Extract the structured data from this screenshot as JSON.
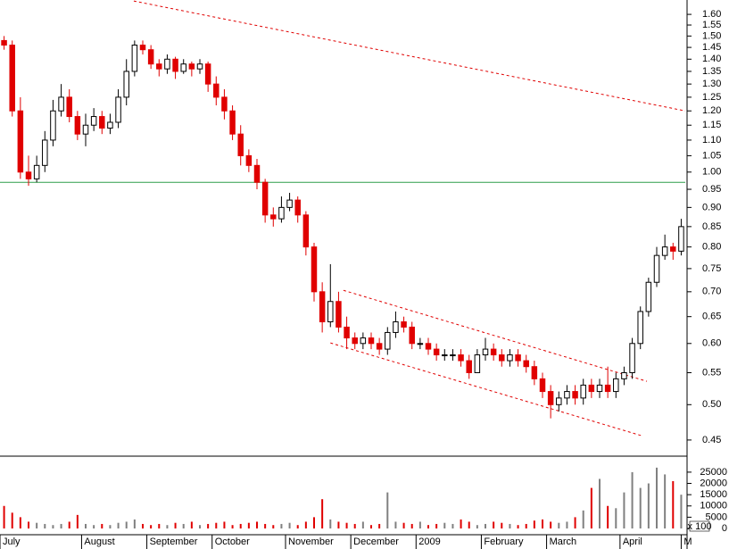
{
  "chart_data": [
    {
      "type": "candlestick",
      "log_scale": true,
      "xlim": [
        0,
        84
      ],
      "ylim": [
        0.43,
        1.67
      ],
      "yticks": [
        0.45,
        {
          "value": 0.5,
          "label": "0.50"
        },
        0.55,
        {
          "value": 0.6,
          "label": "0.60"
        },
        0.65,
        {
          "value": 0.7,
          "label": "0.70"
        },
        0.75,
        {
          "value": 0.8,
          "label": "0.80"
        },
        0.85,
        {
          "value": 0.9,
          "label": "0.90"
        },
        0.95,
        {
          "value": 1.0,
          "label": "1.00"
        },
        1.05,
        {
          "value": 1.1,
          "label": "1.10"
        },
        1.15,
        {
          "value": 1.2,
          "label": "1.20"
        },
        1.25,
        {
          "value": 1.3,
          "label": "1.30"
        },
        1.35,
        {
          "value": 1.4,
          "label": "1.40"
        },
        1.45,
        {
          "value": 1.5,
          "label": "1.50"
        },
        1.55,
        {
          "value": 1.6,
          "label": "1.60"
        }
      ],
      "colors": {
        "up": "#000000",
        "down": "#e00000"
      },
      "open": [
        1.48,
        1.46,
        1.2,
        1.0,
        0.98,
        1.02,
        1.1,
        1.2,
        1.25,
        1.18,
        1.12,
        1.15,
        1.18,
        1.14,
        1.16,
        1.25,
        1.35,
        1.46,
        1.44,
        1.38,
        1.36,
        1.4,
        1.35,
        1.38,
        1.36,
        1.38,
        1.3,
        1.25,
        1.2,
        1.12,
        1.05,
        1.02,
        0.97,
        0.88,
        0.87,
        0.9,
        0.92,
        0.88,
        0.8,
        0.7,
        0.64,
        0.68,
        0.63,
        0.61,
        0.6,
        0.61,
        0.6,
        0.59,
        0.62,
        0.64,
        0.63,
        0.6,
        0.6,
        0.59,
        0.58,
        0.58,
        0.58,
        0.57,
        0.55,
        0.58,
        0.59,
        0.58,
        0.57,
        0.58,
        0.57,
        0.56,
        0.54,
        0.52,
        0.5,
        0.51,
        0.52,
        0.51,
        0.53,
        0.52,
        0.53,
        0.52,
        0.54,
        0.55,
        0.6,
        0.66,
        0.72,
        0.78,
        0.8,
        0.79
      ],
      "high": [
        1.5,
        1.48,
        1.25,
        1.05,
        1.05,
        1.13,
        1.24,
        1.3,
        1.28,
        1.2,
        1.19,
        1.21,
        1.2,
        1.19,
        1.28,
        1.4,
        1.48,
        1.48,
        1.46,
        1.4,
        1.42,
        1.41,
        1.4,
        1.39,
        1.4,
        1.39,
        1.33,
        1.28,
        1.22,
        1.15,
        1.07,
        1.04,
        0.98,
        0.9,
        0.93,
        0.94,
        0.93,
        0.89,
        0.81,
        0.72,
        0.76,
        0.7,
        0.65,
        0.62,
        0.62,
        0.62,
        0.61,
        0.63,
        0.66,
        0.65,
        0.64,
        0.61,
        0.61,
        0.6,
        0.59,
        0.59,
        0.59,
        0.58,
        0.59,
        0.61,
        0.6,
        0.59,
        0.59,
        0.59,
        0.58,
        0.57,
        0.55,
        0.53,
        0.52,
        0.53,
        0.53,
        0.54,
        0.54,
        0.54,
        0.56,
        0.55,
        0.56,
        0.61,
        0.67,
        0.73,
        0.8,
        0.83,
        0.81,
        0.87
      ],
      "low": [
        1.44,
        1.18,
        0.98,
        0.96,
        0.97,
        1.0,
        1.08,
        1.18,
        1.16,
        1.1,
        1.08,
        1.13,
        1.12,
        1.12,
        1.14,
        1.22,
        1.33,
        1.42,
        1.36,
        1.33,
        1.34,
        1.32,
        1.34,
        1.33,
        1.34,
        1.27,
        1.22,
        1.17,
        1.1,
        1.02,
        1.0,
        0.95,
        0.86,
        0.85,
        0.86,
        0.89,
        0.86,
        0.78,
        0.68,
        0.62,
        0.63,
        0.62,
        0.59,
        0.59,
        0.59,
        0.59,
        0.58,
        0.58,
        0.61,
        0.62,
        0.59,
        0.59,
        0.58,
        0.57,
        0.57,
        0.57,
        0.56,
        0.54,
        0.55,
        0.57,
        0.57,
        0.56,
        0.56,
        0.56,
        0.55,
        0.53,
        0.51,
        0.48,
        0.49,
        0.5,
        0.5,
        0.5,
        0.51,
        0.51,
        0.51,
        0.51,
        0.53,
        0.54,
        0.59,
        0.65,
        0.71,
        0.77,
        0.77,
        0.78
      ],
      "close": [
        1.46,
        1.2,
        1.0,
        0.98,
        1.02,
        1.1,
        1.2,
        1.25,
        1.18,
        1.12,
        1.15,
        1.18,
        1.14,
        1.16,
        1.25,
        1.35,
        1.46,
        1.44,
        1.38,
        1.36,
        1.4,
        1.35,
        1.38,
        1.36,
        1.38,
        1.3,
        1.25,
        1.2,
        1.12,
        1.05,
        1.02,
        0.97,
        0.88,
        0.87,
        0.9,
        0.92,
        0.88,
        0.8,
        0.7,
        0.64,
        0.68,
        0.63,
        0.61,
        0.6,
        0.61,
        0.6,
        0.59,
        0.62,
        0.64,
        0.63,
        0.6,
        0.6,
        0.59,
        0.58,
        0.58,
        0.58,
        0.57,
        0.55,
        0.58,
        0.59,
        0.58,
        0.57,
        0.58,
        0.57,
        0.56,
        0.54,
        0.52,
        0.5,
        0.51,
        0.52,
        0.51,
        0.53,
        0.52,
        0.53,
        0.52,
        0.54,
        0.55,
        0.6,
        0.66,
        0.72,
        0.78,
        0.8,
        0.79,
        0.85
      ],
      "lines": [
        {
          "x": [
            16.4,
            84
          ],
          "y": [
            1.665,
            1.2
          ],
          "color": "#e00000",
          "dash": true
        },
        {
          "x": [
            42.1,
            79.3
          ],
          "y": [
            0.703,
            0.536
          ],
          "color": "#e00000",
          "dash": true
        },
        {
          "x": [
            40.5,
            78.6
          ],
          "y": [
            0.601,
            0.456
          ],
          "color": "#e00000",
          "dash": true
        },
        {
          "x": [
            0,
            84
          ],
          "y": [
            0.97,
            0.97
          ],
          "color": "#2e9e4a",
          "dash": false
        }
      ]
    },
    {
      "type": "bar",
      "xlim": [
        0,
        84
      ],
      "ylim": [
        0,
        31700
      ],
      "unit_label": "x 100",
      "yticks": [
        0,
        5000,
        10000,
        15000,
        20000,
        25000
      ],
      "up_color": "#808080",
      "values": [
        10000,
        7000,
        5000,
        3000,
        2500,
        2000,
        1500,
        2000,
        3000,
        6000,
        2000,
        1500,
        2000,
        1500,
        2500,
        3000,
        4000,
        2000,
        1500,
        2000,
        1500,
        2500,
        2000,
        3000,
        1500,
        2000,
        2500,
        3000,
        1500,
        2000,
        2500,
        3000,
        2000,
        1500,
        2000,
        2500,
        1500,
        3000,
        5000,
        13000,
        4000,
        3000,
        2500,
        2000,
        3000,
        1500,
        2000,
        16000,
        3000,
        2500,
        2000,
        3000,
        1500,
        2000,
        2500,
        2000,
        4000,
        3000,
        1500,
        2000,
        3000,
        2500,
        2000,
        1500,
        2000,
        3500,
        4000,
        3000,
        2500,
        3000,
        5000,
        8000,
        18000,
        22000,
        10000,
        9000,
        16000,
        25000,
        18000,
        20000,
        27000,
        24000,
        21000,
        15000
      ],
      "xticks": [
        {
          "value": 0,
          "label": "July"
        },
        {
          "value": 10,
          "label": "August"
        },
        {
          "value": 18,
          "label": "September"
        },
        {
          "value": 26,
          "label": "October"
        },
        {
          "value": 35,
          "label": "November"
        },
        {
          "value": 43,
          "label": "December"
        },
        {
          "value": 51,
          "label": "2009"
        },
        {
          "value": 59,
          "label": "February"
        },
        {
          "value": 67,
          "label": "March"
        },
        {
          "value": 76,
          "label": "April"
        },
        {
          "value": 83.5,
          "label": "M"
        }
      ]
    }
  ]
}
